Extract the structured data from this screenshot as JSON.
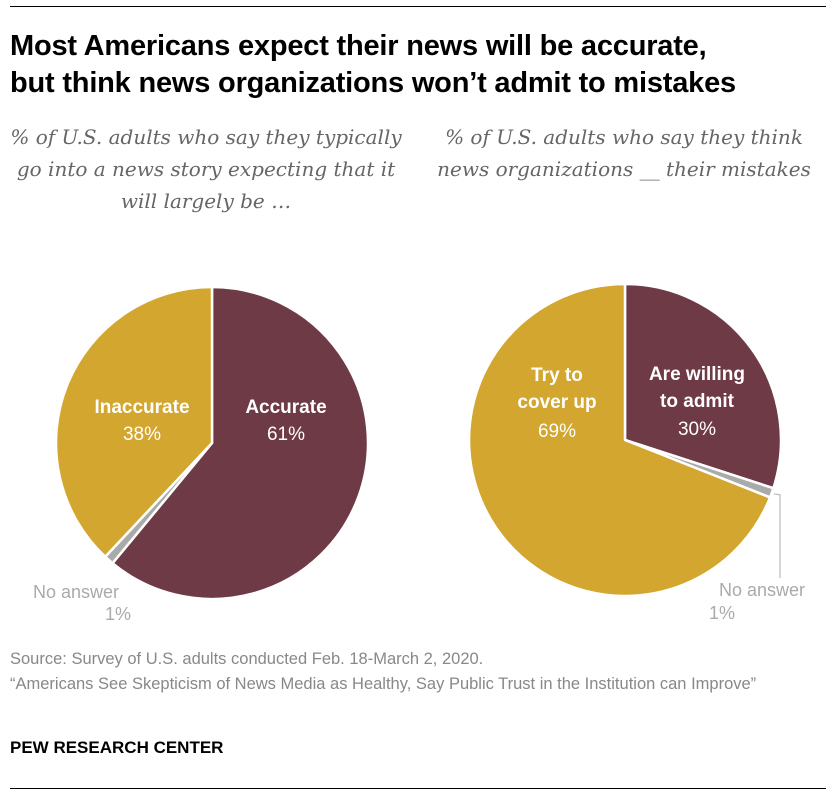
{
  "title_lines": [
    "Most Americans expect their news will be accurate,",
    "but think news organizations won’t admit to mistakes"
  ],
  "chart_data": [
    {
      "type": "pie",
      "subtitle": "% of U.S. adults who say they typically go into a news story expecting that it will largely be …",
      "slices": [
        {
          "label": "Accurate",
          "value": 61,
          "value_label": "61%",
          "color": "#6e3a46"
        },
        {
          "label": "No answer",
          "value": 1,
          "value_label": "1%",
          "color": "#aaaaaa"
        },
        {
          "label": "Inaccurate",
          "value": 38,
          "value_label": "38%",
          "color": "#d2a62f"
        }
      ]
    },
    {
      "type": "pie",
      "subtitle": "% of U.S. adults who say they think news organizations __ their mistakes",
      "slices": [
        {
          "label": "Are willing to admit",
          "value": 30,
          "value_label": "30%",
          "color": "#6e3a46"
        },
        {
          "label": "No answer",
          "value": 1,
          "value_label": "1%",
          "color": "#aaaaaa"
        },
        {
          "label": "Try to cover up",
          "value": 69,
          "value_label": "69%",
          "color": "#d2a62f"
        }
      ]
    }
  ],
  "footer": {
    "source": "Source: Survey of U.S. adults conducted Feb. 18-March 2, 2020.",
    "reference": "“Americans See Skepticism of News Media as Healthy, Say Public Trust in the Institution can Improve”",
    "brand": "PEW RESEARCH CENTER"
  },
  "colors": {
    "accent_maroon": "#6e3a46",
    "accent_gold": "#d2a62f",
    "no_answer_gray": "#aaaaaa"
  }
}
